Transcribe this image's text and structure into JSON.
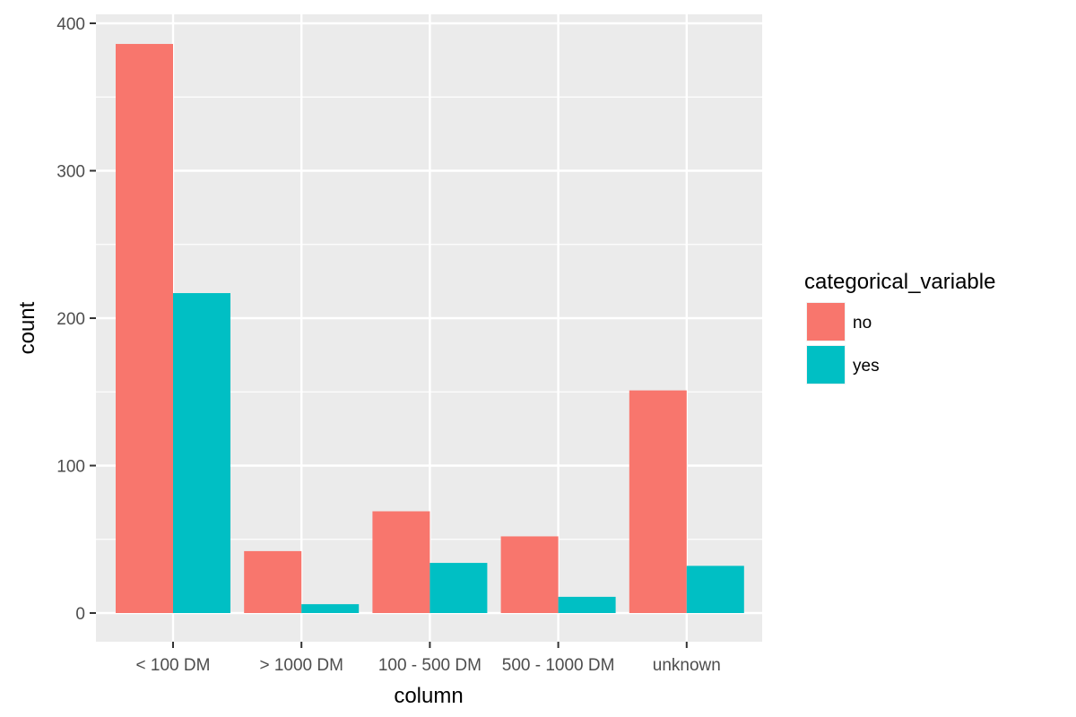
{
  "chart_data": {
    "type": "bar",
    "title": "",
    "xlabel": "column",
    "ylabel": "count",
    "categories": [
      "< 100 DM",
      "> 1000 DM",
      "100 - 500 DM",
      "500 - 1000 DM",
      "unknown"
    ],
    "series": [
      {
        "name": "no",
        "values": [
          386,
          42,
          69,
          52,
          151
        ],
        "color": "#F8766D"
      },
      {
        "name": "yes",
        "values": [
          217,
          6,
          34,
          11,
          32
        ],
        "color": "#00BFC4"
      }
    ],
    "ylim": [
      0,
      400
    ],
    "yticks": [
      0,
      100,
      200,
      300,
      400
    ],
    "grid": true,
    "panel_background": "#EBEBEB",
    "grid_color": "#FFFFFF",
    "legend": {
      "title": "categorical_variable",
      "position": "right"
    }
  }
}
